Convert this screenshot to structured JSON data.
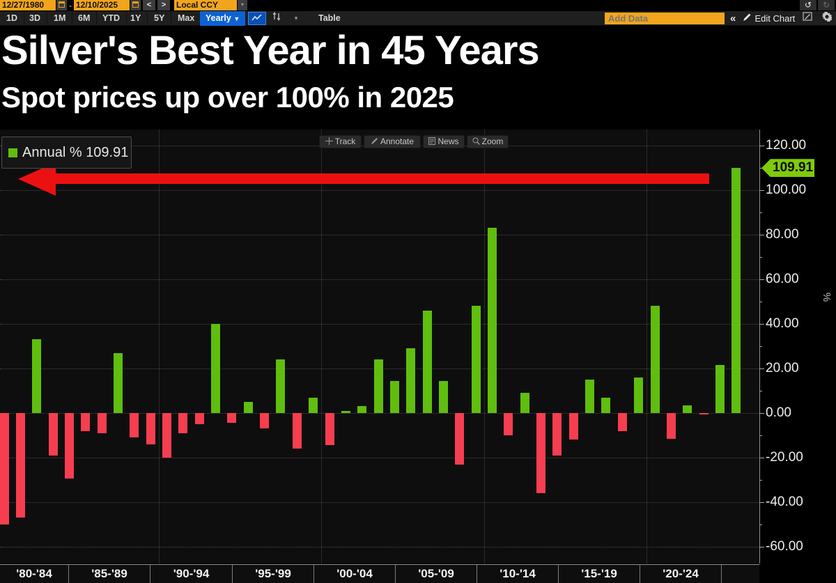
{
  "toolbar_top": {
    "date_from": "12/27/1980",
    "range_separator": "-",
    "date_to": "12/10/2025",
    "prev": "<",
    "next": ">",
    "currency": "Local CCY",
    "dropdown_arrow": "▾",
    "undo": "↺",
    "redo": "↻"
  },
  "toolbar_tabs": {
    "ranges": [
      "1D",
      "3D",
      "1M",
      "6M",
      "YTD",
      "1Y",
      "5Y",
      "Max"
    ],
    "period": "Yearly",
    "period_arrow": "▼",
    "table": "Table",
    "add_data_placeholder": "Add Data",
    "collapse": "«",
    "edit_chart": "Edit Chart"
  },
  "header": {
    "title": "Silver's Best Year in 45 Years",
    "subtitle": "Spot prices up over 100% in 2025"
  },
  "chart_toolbar": {
    "track": "Track",
    "annotate": "Annotate",
    "news": "News",
    "zoom": "Zoom"
  },
  "legend": {
    "series": "Annual %",
    "value": "109.91",
    "swatch_color": "#5FBE0E"
  },
  "chart_data": {
    "type": "bar",
    "title": "Silver's Best Year in 45 Years",
    "subtitle": "Spot prices up over 100% in 2025",
    "series_name": "Annual %",
    "ylabel": "%",
    "ylim": [
      -65,
      127
    ],
    "grid": "dotted",
    "legend_position": "top-left",
    "y_major_ticks": [
      120,
      100,
      80,
      60,
      40,
      20,
      0,
      -20,
      -40,
      -60
    ],
    "y_tick_labels": [
      "120.00",
      "100.00",
      "80.00",
      "60.00",
      "40.00",
      "20.00",
      "0.00",
      "-20.00",
      "-40.00",
      "-60.00"
    ],
    "y_minor_ticks": [
      110,
      90,
      70,
      50,
      30,
      10,
      -10,
      -30,
      -50
    ],
    "x_group_labels": [
      "'80-'84",
      "'85-'89",
      "'90-'94",
      "'95-'99",
      "'00-'04",
      "'05-'09",
      "'10-'14",
      "'15-'19",
      "'20-'24"
    ],
    "years": [
      1980,
      1981,
      1982,
      1983,
      1984,
      1985,
      1986,
      1987,
      1988,
      1989,
      1990,
      1991,
      1992,
      1993,
      1994,
      1995,
      1996,
      1997,
      1998,
      1999,
      2000,
      2001,
      2002,
      2003,
      2004,
      2005,
      2006,
      2007,
      2008,
      2009,
      2010,
      2011,
      2012,
      2013,
      2014,
      2015,
      2016,
      2017,
      2018,
      2019,
      2020,
      2021,
      2022,
      2023,
      2024,
      2025
    ],
    "values": [
      -50,
      -47,
      33,
      -19,
      -29.5,
      -8,
      -9,
      27,
      -11,
      -14,
      -20,
      -9,
      -5,
      40,
      -4.5,
      5,
      -7,
      24,
      -16,
      7,
      -14.5,
      1,
      3,
      24,
      14.5,
      29,
      46,
      14.4,
      -23,
      48,
      83,
      -10,
      9,
      -36,
      -19,
      -12,
      15,
      7,
      -8,
      16,
      48,
      -11.5,
      3.4,
      -0.7,
      21.5,
      109.91
    ],
    "last_value_badge": "109.91",
    "positive_color": "#5FBE0E",
    "negative_color": "#F63E50",
    "annotation": {
      "shape": "left-pointing-arrow",
      "color": "#EC1111",
      "at_value": 105,
      "meaning": "highlights 2025 bar level across the chart"
    }
  }
}
